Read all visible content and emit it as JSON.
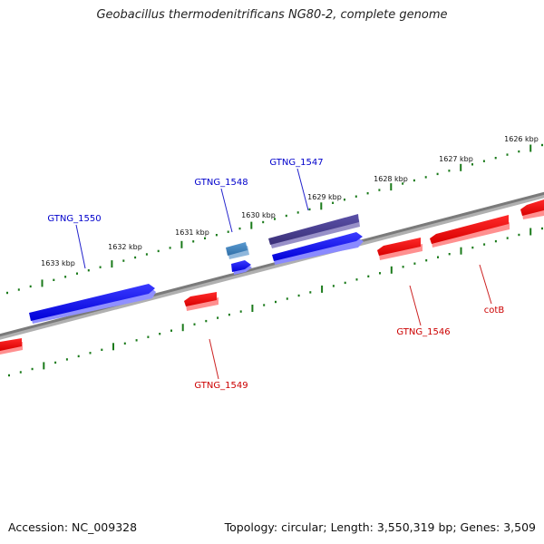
{
  "title": "Geobacillus thermodenitrificans NG80-2, complete genome",
  "footer": {
    "accession": "Accession: NC_009328",
    "summary": "Topology: circular; Length: 3,550,319 bp; Genes: 3,509"
  },
  "ticks": [
    {
      "label": "1626 kbp",
      "kbp": 1626
    },
    {
      "label": "1627 kbp",
      "kbp": 1627
    },
    {
      "label": "1628 kbp",
      "kbp": 1628
    },
    {
      "label": "1629 kbp",
      "kbp": 1629
    },
    {
      "label": "1630 kbp",
      "kbp": 1630
    },
    {
      "label": "1631 kbp",
      "kbp": 1631
    },
    {
      "label": "1632 kbp",
      "kbp": 1632
    },
    {
      "label": "1633 kbp",
      "kbp": 1633
    }
  ],
  "gene_labels": [
    {
      "name": "GTNG_1550",
      "strand": "forward",
      "color": "#0000cc"
    },
    {
      "name": "GTNG_1548",
      "strand": "forward",
      "color": "#0000cc"
    },
    {
      "name": "GTNG_1547",
      "strand": "forward",
      "color": "#0000cc"
    },
    {
      "name": "GTNG_1549",
      "strand": "reverse",
      "color": "#cc0000"
    },
    {
      "name": "GTNG_1546",
      "strand": "reverse",
      "color": "#cc0000"
    },
    {
      "name": "cotB",
      "strand": "reverse",
      "color": "#cc0000"
    }
  ],
  "colors": {
    "forward_gene": "#0000ff",
    "reverse_gene": "#ff0000",
    "highlight_purple": "#4a3f8f",
    "highlight_steel": "#4a86b8",
    "backbone": "#808080",
    "tick_marks": "#1a7a1a"
  }
}
